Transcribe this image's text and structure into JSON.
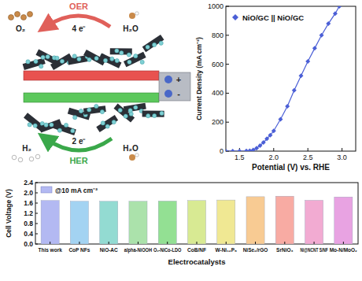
{
  "diagram": {
    "oer": {
      "label": "OER",
      "electrons": "4 e⁻",
      "product": "O₂",
      "reactant": "H₂O"
    },
    "her": {
      "label": "HER",
      "electrons": "2 e⁻",
      "product": "H₂",
      "reactant": "H₂O"
    },
    "terminals": [
      "+",
      "-"
    ]
  },
  "chart_data": [
    {
      "type": "line",
      "x_label": "Potential (V) vs. RHE",
      "y_label": "Current Density (mA cm⁻²)",
      "x": [
        1.3,
        1.4,
        1.5,
        1.6,
        1.65,
        1.7,
        1.75,
        1.8,
        1.85,
        1.9,
        1.95,
        2.0,
        2.1,
        2.2,
        2.3,
        2.4,
        2.5,
        2.6,
        2.7,
        2.8,
        2.9,
        2.96
      ],
      "series": [
        {
          "name": "NiO/GC || NiO/GC",
          "color": "#4b5fd6",
          "marker": "diamond",
          "values": [
            0,
            0,
            0,
            1,
            3,
            8,
            20,
            38,
            60,
            85,
            110,
            140,
            220,
            310,
            420,
            520,
            620,
            710,
            800,
            880,
            950,
            1000
          ]
        }
      ],
      "xlim": [
        1.3,
        3.2
      ],
      "ylim": [
        0,
        1000
      ],
      "xticks": [
        1.5,
        {
          "value": 2,
          "label": "2.0"
        },
        2.5,
        {
          "value": 3,
          "label": "3.0"
        }
      ],
      "yticks": [
        0,
        200,
        400,
        600,
        800,
        1000
      ],
      "legend": "upper left"
    },
    {
      "type": "bar",
      "x_label": "Electrocatalysts",
      "y_label": "Cell Voltage (V)",
      "categories": [
        "This work",
        "CoP NFs",
        "NiO-AC",
        "alpha-NiOOH",
        "Oᵥ-NiCo-LDO",
        "CoB/NF",
        "W-Ni₁₂P₅",
        "NiSe₂/rGO",
        "SrNiO₃",
        "Ni@NCNT S/NF",
        "Mo-N/MoO₂"
      ],
      "series": [
        {
          "name": "@10 mA cm⁻²",
          "color": "#b3b9f2",
          "values": [
            1.7,
            1.67,
            1.67,
            1.67,
            1.68,
            1.7,
            1.72,
            1.85,
            1.87,
            1.71,
            1.84
          ],
          "colors": [
            "#b3b9f2",
            "#a3d3f2",
            "#93dbd2",
            "#abe2ab",
            "#93e093",
            "#d8ea93",
            "#f0e893",
            "#f8cb93",
            "#f8aba3",
            "#f2abd2",
            "#e8a3e2"
          ]
        }
      ],
      "ylim": [
        0,
        2.4
      ],
      "yticks": [
        {
          "value": 0,
          "label": "0.0"
        },
        0.4,
        0.8,
        1.2,
        1.6,
        {
          "value": 2,
          "label": "2.0"
        },
        2.4
      ],
      "legend": "upper left"
    }
  ]
}
